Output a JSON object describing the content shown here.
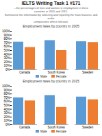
{
  "title": "IELTS Writing Task 1 #171",
  "subtitle": [
    "...the percentages of men and women in employment in three\ncountries in 2005 and 2015.",
    "Summarise the information by selecting and reporting the main features, and make\ncomparisons where relevant."
  ],
  "chart_data": [
    {
      "type": "bar",
      "title": "Employment rates by country in 2005",
      "categories": [
        "Canada",
        "South Korea",
        "Sweden"
      ],
      "series": [
        {
          "name": "Male",
          "color": "#5B9BD5",
          "values": [
            0.72,
            0.76,
            0.73
          ]
        },
        {
          "name": "Female",
          "color": "#ED7D31",
          "values": [
            0.58,
            0.5,
            0.71
          ]
        }
      ],
      "ylim": [
        0,
        1.0
      ],
      "yticks": [
        {
          "value": 0.0,
          "label": "0%"
        },
        {
          "value": 0.1,
          "label": "10%"
        },
        {
          "value": 0.2,
          "label": "20%"
        },
        {
          "value": 0.3,
          "label": "30%"
        },
        {
          "value": 0.4,
          "label": "40%"
        },
        {
          "value": 0.5,
          "label": "50%"
        },
        {
          "value": 0.6,
          "label": "60%"
        },
        {
          "value": 0.7,
          "label": "70%"
        },
        {
          "value": 0.8,
          "label": "80%"
        },
        {
          "value": 0.9,
          "label": "90%"
        },
        {
          "value": 1.0,
          "label": "100%"
        }
      ],
      "grid": false,
      "legend": "bottom"
    },
    {
      "type": "bar",
      "title": "Employment rates by country in 2015",
      "categories": [
        "Canada",
        "South Korea",
        "Sweden"
      ],
      "series": [
        {
          "name": "Male",
          "color": "#5B9BD5",
          "values": [
            0.7,
            0.76,
            0.72
          ]
        },
        {
          "name": "Female",
          "color": "#ED7D31",
          "values": [
            0.62,
            0.45,
            0.65
          ]
        }
      ],
      "ylim": [
        0,
        1.0
      ],
      "yticks": [
        {
          "value": 0.0,
          "label": "0%"
        },
        {
          "value": 0.1,
          "label": "10%"
        },
        {
          "value": 0.2,
          "label": "20%"
        },
        {
          "value": 0.3,
          "label": "30%"
        },
        {
          "value": 0.4,
          "label": "40%"
        },
        {
          "value": 0.5,
          "label": "50%"
        },
        {
          "value": 0.6,
          "label": "60%"
        },
        {
          "value": 0.7,
          "label": "70%"
        },
        {
          "value": 0.8,
          "label": "80%"
        },
        {
          "value": 0.9,
          "label": "90%"
        },
        {
          "value": 1.0,
          "label": "100%"
        }
      ],
      "grid": false,
      "legend": "bottom"
    }
  ]
}
